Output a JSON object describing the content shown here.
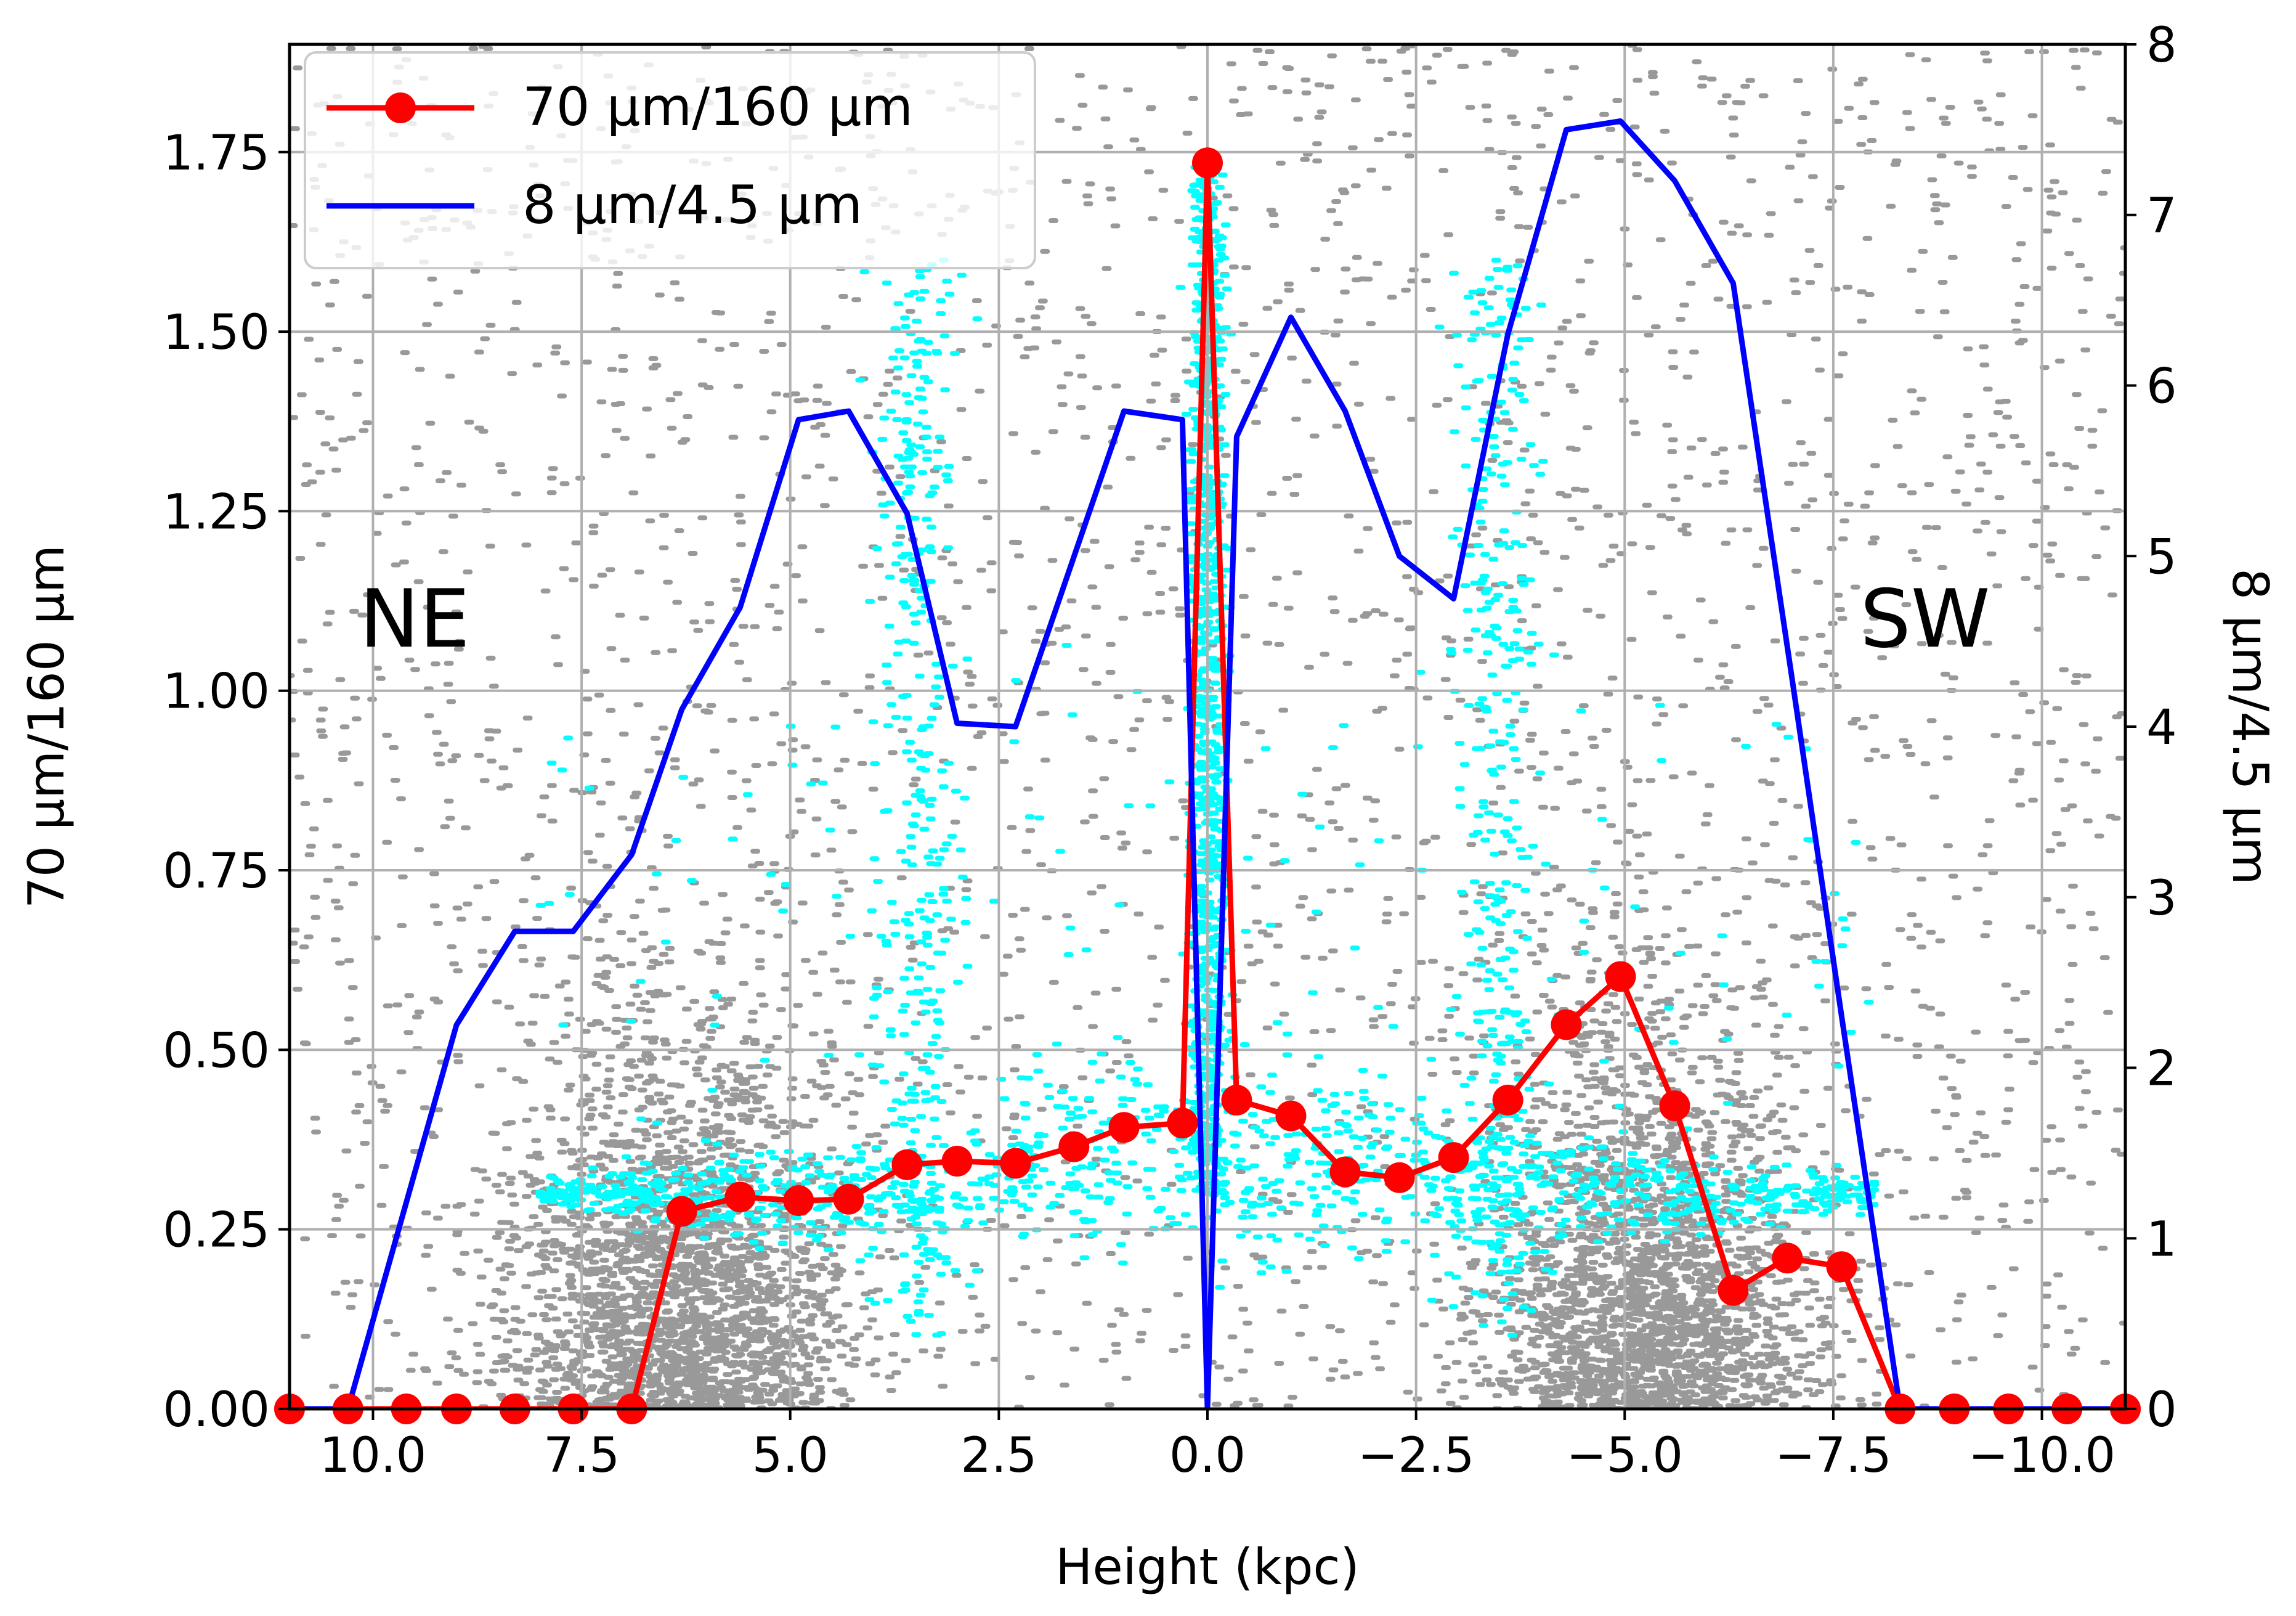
{
  "chart_data": {
    "type": "line",
    "xlabel": "Height (kpc)",
    "ylabel": "70 µm/160 µm",
    "y2label": "8 µm/4.5 µm",
    "xlim": [
      11,
      -11
    ],
    "ylim": [
      0,
      1.9
    ],
    "y2lim": [
      0,
      8
    ],
    "x_ticks": [
      10.0,
      7.5,
      5.0,
      2.5,
      0.0,
      -2.5,
      -5.0,
      -7.5,
      -10.0
    ],
    "x_tick_labels": [
      "10.0",
      "7.5",
      "5.0",
      "2.5",
      "0.0",
      "−2.5",
      "−5.0",
      "−7.5",
      "−10.0"
    ],
    "y_ticks": [
      0,
      0.25,
      0.5,
      0.75,
      1.0,
      1.25,
      1.5,
      1.75
    ],
    "y_tick_labels": [
      "0.00",
      "0.25",
      "0.50",
      "0.75",
      "1.00",
      "1.25",
      "1.50",
      "1.75"
    ],
    "y2_ticks": [
      0,
      1,
      2,
      3,
      4,
      5,
      6,
      7,
      8
    ],
    "y2_tick_labels": [
      "0",
      "1",
      "2",
      "3",
      "4",
      "5",
      "6",
      "7",
      "8"
    ],
    "grid": true,
    "legend_position": "top-left",
    "annotations": [
      {
        "text": "NE",
        "x": 9.5,
        "y": 1.1
      },
      {
        "text": "SW",
        "x": -8.6,
        "y": 1.1
      }
    ],
    "series": [
      {
        "name": "70 µm/160 µm",
        "axis": "left",
        "color": "#ff0000",
        "marker": "circle",
        "x": [
          11.0,
          10.3,
          9.6,
          9.0,
          8.3,
          7.6,
          6.9,
          6.3,
          5.6,
          4.9,
          4.3,
          3.6,
          3.0,
          2.3,
          1.6,
          1.0,
          0.3,
          0.0,
          -0.35,
          -1.0,
          -1.65,
          -2.3,
          -2.95,
          -3.6,
          -4.3,
          -4.95,
          -5.6,
          -6.3,
          -6.95,
          -7.6,
          -8.3,
          -8.95,
          -9.6,
          -10.3,
          -11.0
        ],
        "values": [
          0,
          0,
          0,
          0,
          0,
          0,
          0,
          0.275,
          0.295,
          0.29,
          0.292,
          0.34,
          0.345,
          0.342,
          0.365,
          0.392,
          0.398,
          1.735,
          0.43,
          0.408,
          0.33,
          0.322,
          0.35,
          0.43,
          0.535,
          0.602,
          0.422,
          0.165,
          0.21,
          0.198,
          0,
          0,
          0,
          0,
          0
        ]
      },
      {
        "name": "8 µm/4.5 µm",
        "axis": "right",
        "color": "#0000ff",
        "marker": "none",
        "x": [
          11.0,
          10.3,
          9.0,
          8.3,
          7.6,
          6.9,
          6.3,
          5.6,
          4.9,
          4.3,
          3.6,
          3.0,
          2.3,
          1.0,
          0.3,
          0.0,
          -0.35,
          -1.0,
          -1.65,
          -2.3,
          -2.95,
          -3.6,
          -4.3,
          -4.95,
          -5.6,
          -6.3,
          -7.0,
          -7.6,
          -8.3,
          -8.95,
          -9.6,
          -10.3,
          -11.0
        ],
        "values": [
          0,
          0,
          2.25,
          2.8,
          2.8,
          3.25,
          4.1,
          4.7,
          5.8,
          5.85,
          5.25,
          4.02,
          4.0,
          5.85,
          5.8,
          0,
          5.7,
          6.4,
          5.85,
          5.0,
          4.75,
          6.3,
          7.5,
          7.55,
          7.2,
          6.6,
          4.3,
          2.3,
          0,
          0,
          0,
          0,
          0
        ]
      }
    ],
    "background_scatter": [
      {
        "name": "gray pixels",
        "color": "#999999"
      },
      {
        "name": "cyan pixels",
        "color": "#00ffff"
      }
    ]
  }
}
